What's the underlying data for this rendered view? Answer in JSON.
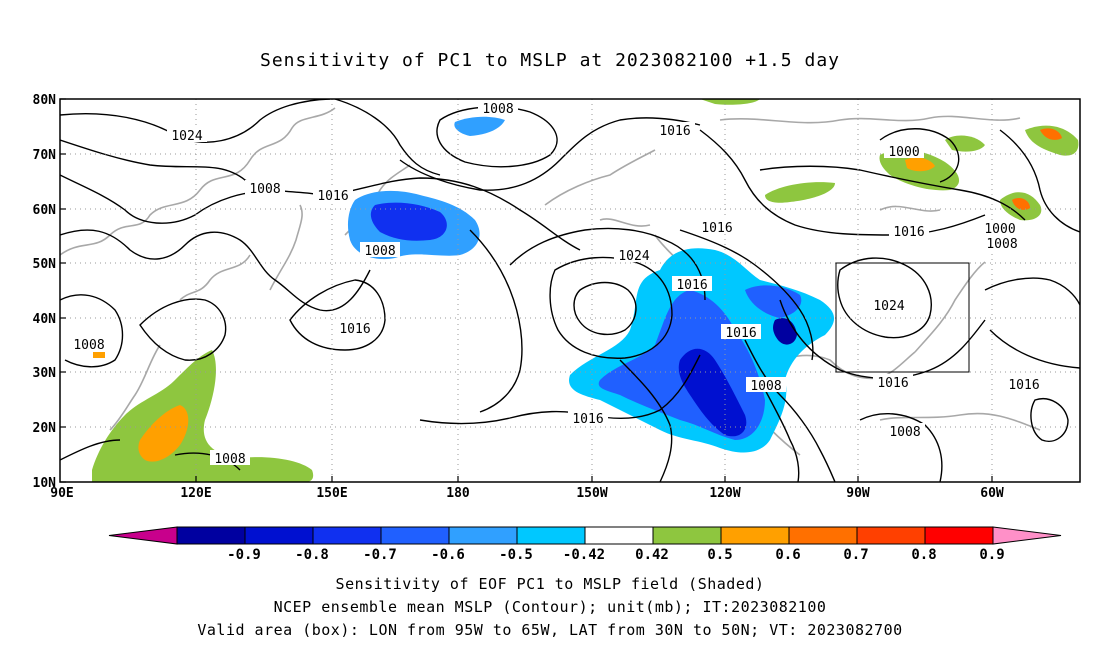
{
  "title": "Sensitivity of PC1 to MSLP at 2023082100 +1.5 day",
  "map": {
    "lat_labels": [
      "80N",
      "70N",
      "60N",
      "50N",
      "40N",
      "30N",
      "20N",
      "10N"
    ],
    "lon_labels": [
      "90E",
      "120E",
      "150E",
      "180",
      "150W",
      "120W",
      "90W",
      "60W"
    ],
    "lon_range": [
      "90E",
      "45W"
    ],
    "lat_range": [
      "10N",
      "80N"
    ],
    "grid": "dotted",
    "contour_labels": [
      "1024",
      "1008",
      "1016",
      "1008",
      "1016",
      "1016",
      "1008",
      "1016",
      "1024",
      "1016",
      "1016",
      "1008",
      "1016",
      "1000",
      "1016",
      "1000",
      "1008",
      "1024",
      "1016",
      "1016",
      "1008",
      "1008"
    ],
    "valid_box": {
      "lon": [
        "95W",
        "65W"
      ],
      "lat": [
        "30N",
        "50N"
      ]
    }
  },
  "colorbar": {
    "labels": [
      "-0.9",
      "-0.8",
      "-0.7",
      "-0.6",
      "-0.5",
      "-0.42",
      "0.42",
      "0.5",
      "0.6",
      "0.7",
      "0.8",
      "0.9"
    ],
    "colors": [
      "#0000a0",
      "#0010d0",
      "#1030f0",
      "#2060ff",
      "#30a0ff",
      "#00c8ff",
      "#ffffff",
      "#8ec63f",
      "#ffa000",
      "#ff7000",
      "#ff4000",
      "#ff0000"
    ],
    "low_end_color": "#c8008c",
    "high_end_color": "#ff90c8"
  },
  "captions": {
    "line1": "Sensitivity of EOF PC1 to MSLP field (Shaded)",
    "line2": "NCEP ensemble mean MSLP (Contour); unit(mb); IT:2023082100",
    "line3": "Valid area (box): LON from 95W to 65W, LAT from 30N to 50N; VT: 2023082700"
  }
}
